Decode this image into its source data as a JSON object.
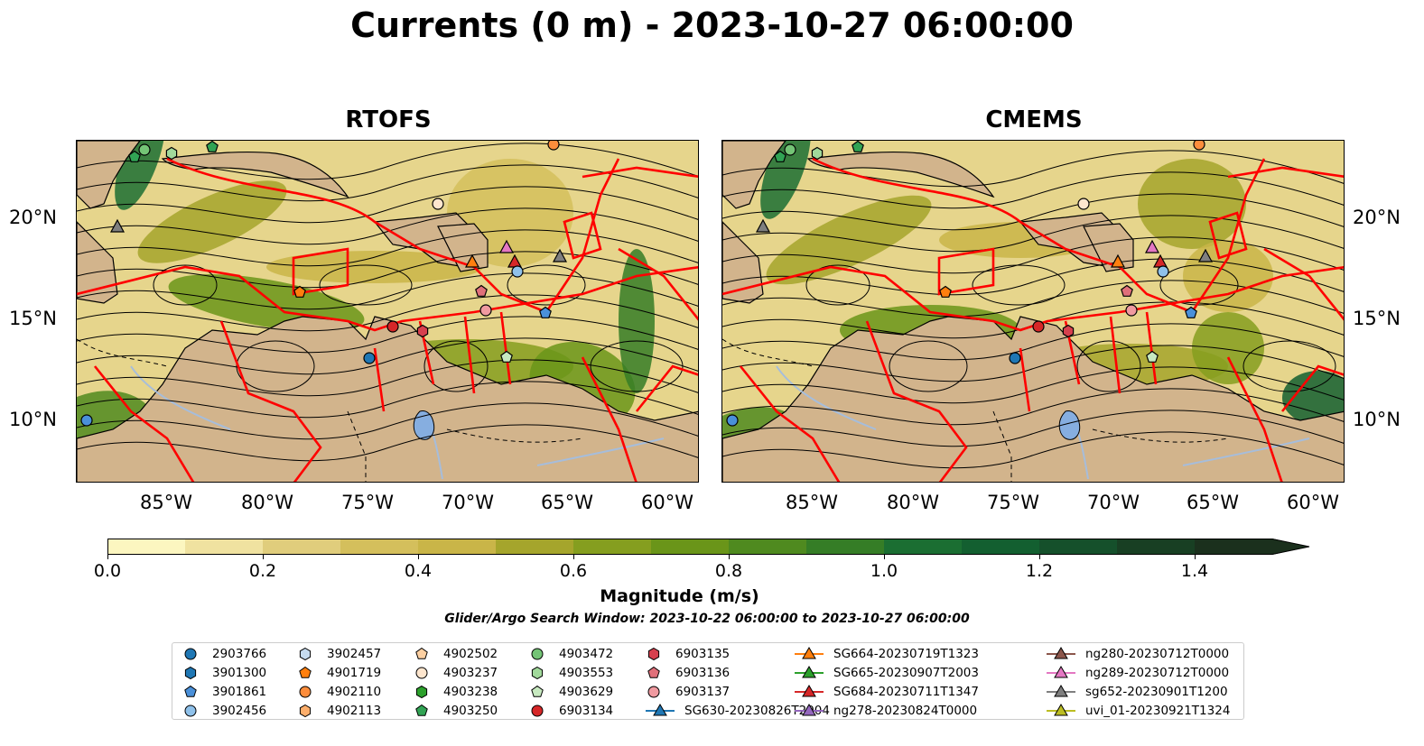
{
  "title": "Currents (0 m) - 2023-10-27 06:00:00",
  "panels": [
    {
      "title": "RTOFS"
    },
    {
      "title": "CMEMS"
    }
  ],
  "axes": {
    "lon_labels": [
      "85°W",
      "80°W",
      "75°W",
      "70°W",
      "65°W",
      "60°W"
    ],
    "lat_labels": [
      "20°N",
      "15°N",
      "10°N"
    ]
  },
  "colorbar": {
    "label": "Magnitude (m/s)",
    "ticks": [
      "0.0",
      "0.2",
      "0.4",
      "0.6",
      "0.8",
      "1.0",
      "1.2",
      "1.4"
    ],
    "range": [
      0,
      1.5
    ],
    "extend": "max",
    "colors": [
      "#fcf6c0",
      "#f0e2a0",
      "#e0cd7c",
      "#d4bf5c",
      "#c9b548",
      "#a5a52c",
      "#859e1f",
      "#6a9519",
      "#4f8a1f",
      "#357d26",
      "#1b6e32",
      "#135f30",
      "#15502b",
      "#183f23",
      "#1b301d"
    ]
  },
  "search_window": "Glider/Argo Search Window: 2023-10-22 06:00:00 to 2023-10-27 06:00:00",
  "colors": {
    "land": "#d2b48c",
    "eez_boundary": "#ff0000",
    "streamline": "#000000",
    "river": "#a6bddb"
  },
  "legend": {
    "columns": [
      [
        {
          "label": "2903766",
          "marker": "circle",
          "color": "#1f77b4"
        },
        {
          "label": "3901300",
          "marker": "hexagon",
          "color": "#1f77b4"
        },
        {
          "label": "3901861",
          "marker": "pentagon",
          "color": "#4a90d9"
        },
        {
          "label": "3902456",
          "marker": "circle",
          "color": "#8fc1ea"
        }
      ],
      [
        {
          "label": "3902457",
          "marker": "hexagon",
          "color": "#c6dbef"
        },
        {
          "label": "4901719",
          "marker": "pentagon",
          "color": "#ff7f0e"
        },
        {
          "label": "4902110",
          "marker": "circle",
          "color": "#fd8d3c"
        },
        {
          "label": "4902113",
          "marker": "hexagon",
          "color": "#fdae6b"
        }
      ],
      [
        {
          "label": "4902502",
          "marker": "pentagon",
          "color": "#fdd0a2"
        },
        {
          "label": "4903237",
          "marker": "circle",
          "color": "#fee6ce"
        },
        {
          "label": "4903238",
          "marker": "hexagon",
          "color": "#2ca02c"
        },
        {
          "label": "4903250",
          "marker": "pentagon",
          "color": "#31a354"
        }
      ],
      [
        {
          "label": "4903472",
          "marker": "circle",
          "color": "#74c476"
        },
        {
          "label": "4903553",
          "marker": "hexagon",
          "color": "#a1d99b"
        },
        {
          "label": "4903629",
          "marker": "pentagon",
          "color": "#c7e9c0"
        },
        {
          "label": "6903134",
          "marker": "circle",
          "color": "#d62728"
        }
      ],
      [
        {
          "label": "6903135",
          "marker": "hexagon",
          "color": "#d6404e"
        },
        {
          "label": "6903136",
          "marker": "pentagon",
          "color": "#e0707a"
        },
        {
          "label": "6903137",
          "marker": "circle",
          "color": "#f09aa0"
        },
        {
          "label": "SG630-20230826T2004",
          "marker": "triangle-line",
          "color": "#1f77b4"
        }
      ],
      [
        {
          "label": "SG664-20230719T1323",
          "marker": "triangle-line",
          "color": "#ff7f0e"
        },
        {
          "label": "SG665-20230907T2003",
          "marker": "triangle-line",
          "color": "#2ca02c"
        },
        {
          "label": "SG684-20230711T1347",
          "marker": "triangle-line",
          "color": "#d62728"
        },
        {
          "label": "ng278-20230824T0000",
          "marker": "triangle-line",
          "color": "#9467bd"
        }
      ],
      [
        {
          "label": "ng280-20230712T0000",
          "marker": "triangle-line",
          "color": "#8c564b"
        },
        {
          "label": "ng289-20230712T0000",
          "marker": "triangle-line",
          "color": "#e377c2"
        },
        {
          "label": "sg652-20230901T1200",
          "marker": "triangle-line",
          "color": "#7f7f7f"
        },
        {
          "label": "uvi_01-20230921T1324",
          "marker": "triangle-line",
          "color": "#bcbd22"
        }
      ]
    ]
  }
}
